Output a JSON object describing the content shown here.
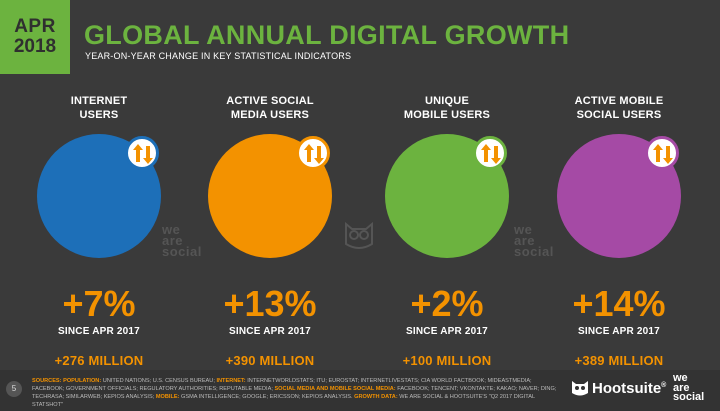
{
  "header": {
    "month": "APR",
    "year": "2018",
    "title": "GLOBAL ANNUAL DIGITAL GROWTH",
    "subtitle": "YEAR-ON-YEAR CHANGE IN KEY STATISTICAL INDICATORS"
  },
  "stats": [
    {
      "label1": "INTERNET",
      "label2": "USERS",
      "change": "+7%",
      "since": "SINCE APR 2017",
      "absolute": "+276 MILLION",
      "color": "#1d6fb8",
      "icon": "globe-icon"
    },
    {
      "label1": "ACTIVE SOCIAL",
      "label2": "MEDIA USERS",
      "change": "+13%",
      "since": "SINCE APR 2017",
      "absolute": "+390 MILLION",
      "color": "#f39200",
      "icon": "chat-bubbles-icon"
    },
    {
      "label1": "UNIQUE",
      "label2": "MOBILE USERS",
      "change": "+2%",
      "since": "SINCE APR 2017",
      "absolute": "+100 MILLION",
      "color": "#6cb33f",
      "icon": "smartphone-icon"
    },
    {
      "label1": "ACTIVE MOBILE",
      "label2": "SOCIAL USERS",
      "change": "+14%",
      "since": "SINCE APR 2017",
      "absolute": "+389 MILLION",
      "color": "#a54aa5",
      "icon": "mobile-chat-icon"
    }
  ],
  "watermark": {
    "l1": "we",
    "l2": "are",
    "l3": "social"
  },
  "footer": {
    "page": "5",
    "sources_label": "SOURCES:",
    "population_label": "POPULATION:",
    "population_text": "UNITED NATIONS; U.S. CENSUS BUREAU;",
    "internet_label": "INTERNET:",
    "internet_text": "INTERNETWORLDSTATS; ITU; EUROSTAT; INTERNETLIVESTATS; CIA WORLD FACTBOOK; MIDEASTMEDIA; FACEBOOK; GOVERNMENT OFFICIALS; REGULATORY AUTHORITIES; REPUTABLE MEDIA;",
    "social_label": "SOCIAL MEDIA AND MOBILE SOCIAL MEDIA:",
    "social_text": "FACEBOOK; TENCENT; VKONTAKTE; KAKAO; NAVER; DING; TECHRASA; SIMILARWEB; KEPIOS ANALYSIS;",
    "mobile_label": "MOBILE:",
    "mobile_text": "GSMA INTELLIGENCE; GOOGLE; ERICSSON; KEPIOS ANALYSIS.",
    "growth_label": "GROWTH DATA:",
    "growth_text": "WE ARE SOCIAL & HOOTSUITE'S \"Q2 2017 DIGITAL STATSHOT\"",
    "brand": "Hootsuite",
    "brand_suffix": "®"
  }
}
